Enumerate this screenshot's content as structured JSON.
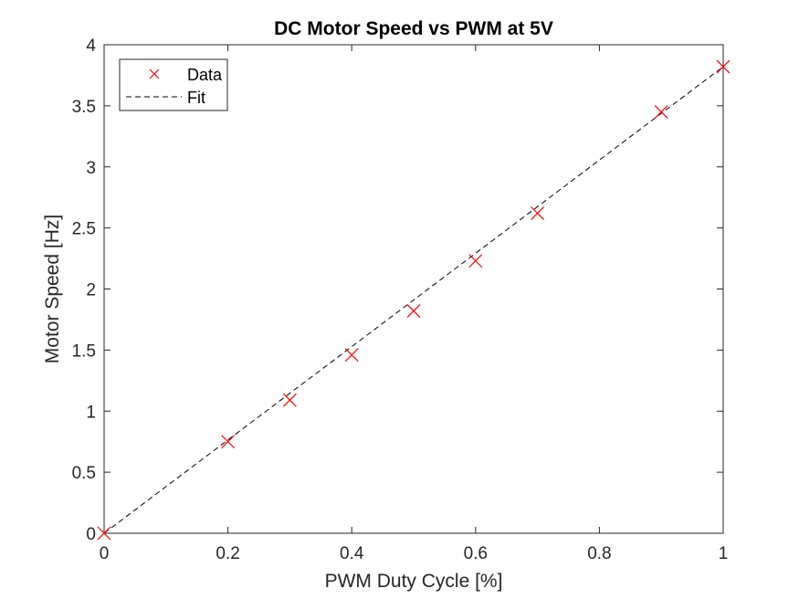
{
  "chart_data": {
    "type": "scatter",
    "title": "DC Motor Speed vs PWM at 5V",
    "xlabel": "PWM Duty Cycle [%]",
    "ylabel": "Motor Speed [Hz]",
    "xlim": [
      0,
      1
    ],
    "ylim": [
      0,
      4
    ],
    "xticks": [
      0,
      0.2,
      0.4,
      0.6,
      0.8,
      1
    ],
    "xtick_labels": [
      "0",
      "0.2",
      "0.4",
      "0.6",
      "0.8",
      "1"
    ],
    "yticks": [
      0,
      0.5,
      1,
      1.5,
      2,
      2.5,
      3,
      3.5,
      4
    ],
    "ytick_labels": [
      "0",
      "0.5",
      "1",
      "1.5",
      "2",
      "2.5",
      "3",
      "3.5",
      "4"
    ],
    "grid": false,
    "legend_location": "top-left",
    "series": [
      {
        "name": "Data",
        "style": "markers",
        "marker": "x",
        "color": "#ff0000",
        "x": [
          0,
          0.2,
          0.3,
          0.4,
          0.5,
          0.6,
          0.7,
          0.9,
          1.0
        ],
        "y": [
          0.0,
          0.75,
          1.09,
          1.46,
          1.82,
          2.23,
          2.62,
          3.45,
          3.82
        ]
      },
      {
        "name": "Fit",
        "style": "dashed-line",
        "color": "#000000",
        "x": [
          0,
          1.0
        ],
        "y": [
          0.0,
          3.82
        ]
      }
    ]
  }
}
